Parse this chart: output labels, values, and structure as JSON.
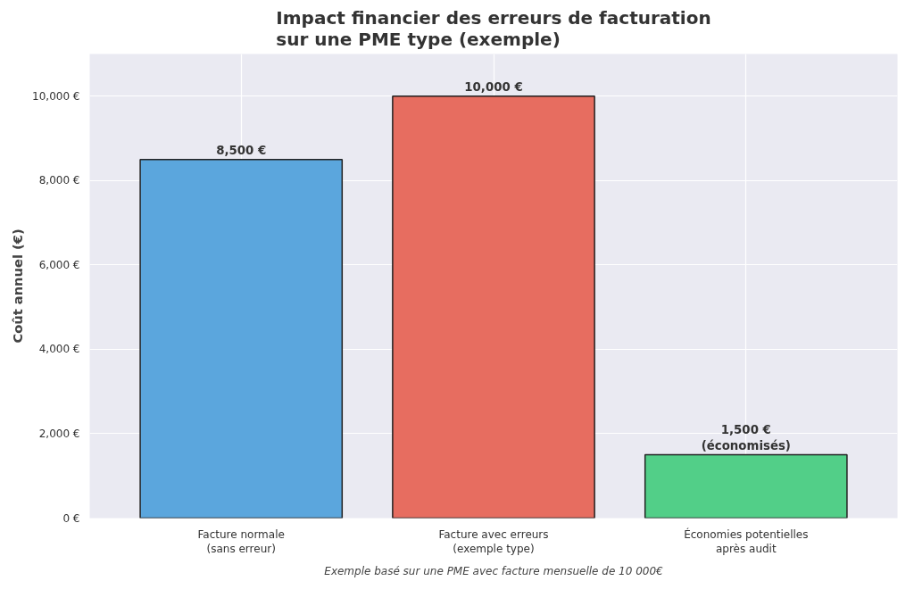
{
  "chart_data": {
    "type": "bar",
    "title": "Impact financier des erreurs de facturation\nsur une PME type (exemple)",
    "ylabel": "Coût annuel (€)",
    "categories": [
      "Facture normale\n(sans erreur)",
      "Facture avec erreurs\n(exemple type)",
      "Économies potentielles\naprès audit"
    ],
    "values": [
      8500,
      10000,
      1500
    ],
    "colors": [
      "#5ba6dd",
      "#e76d60",
      "#52cf88"
    ],
    "value_labels": [
      "8,500 €",
      "10,000 €",
      "1,500 €\n(économisés)"
    ],
    "ylim": [
      0,
      11000
    ],
    "yticks": [
      {
        "value": 0,
        "label": "0 €"
      },
      {
        "value": 2000,
        "label": "2,000 €"
      },
      {
        "value": 4000,
        "label": "4,000 €"
      },
      {
        "value": 6000,
        "label": "6,000 €"
      },
      {
        "value": 8000,
        "label": "8,000 €"
      },
      {
        "value": 10000,
        "label": "10,000 €"
      }
    ],
    "grid": true,
    "annotations": [
      "Exemple basé sur une PME avec facture mensuelle de 10 000€"
    ]
  }
}
